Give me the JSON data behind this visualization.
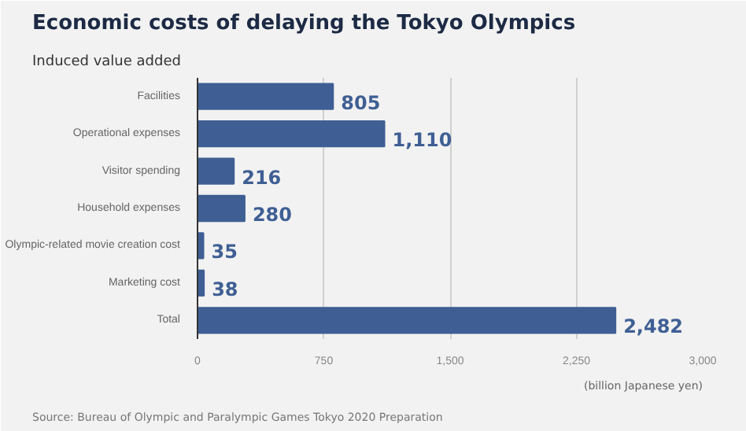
{
  "chart_data": {
    "type": "bar",
    "orientation": "horizontal",
    "title": "Economic costs of delaying the Tokyo Olympics",
    "subtitle": "Induced value added",
    "xlabel": "(billion Japanese yen)",
    "categories": [
      "Facilities",
      "Operational expenses",
      "Visitor spending",
      "Household expenses",
      "Olympic-related movie creation cost",
      "Marketing cost",
      "Total"
    ],
    "values": [
      805,
      1110,
      216,
      280,
      35,
      38,
      2482
    ],
    "value_labels": [
      "805",
      "1,110",
      "216",
      "280",
      "35",
      "38",
      "2,482"
    ],
    "color": "#3f5f94",
    "xlim": [
      0,
      3000
    ],
    "xticks": [
      0,
      {
        "value": 750,
        "label": "750"
      },
      {
        "value": 1500,
        "label": "1,500"
      },
      {
        "value": 2250,
        "label": "2,250"
      },
      {
        "value": 3000,
        "label": "3,000"
      }
    ],
    "grid": "x",
    "annotations": [
      "Source: Bureau of Olympic and Paralympic Games Tokyo 2020 Preparation"
    ]
  }
}
